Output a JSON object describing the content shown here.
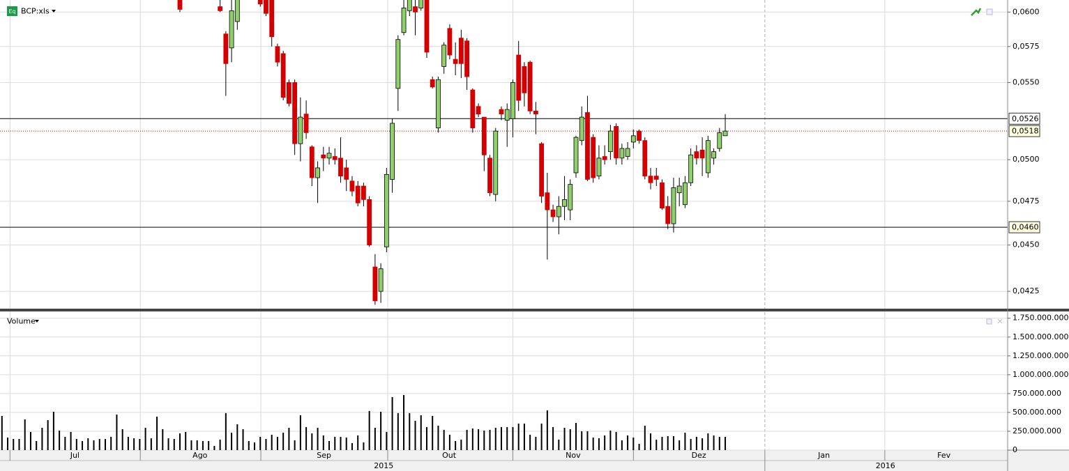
{
  "x_axis": {
    "xlim": [
      -0.34,
      174.95
    ],
    "xticks": [
      {
        "value": 12.7,
        "label": "Jul"
      },
      {
        "value": 34.5,
        "label": "Ago"
      },
      {
        "value": 56.1,
        "label": "Sep"
      },
      {
        "value": 77.9,
        "label": "Out"
      },
      {
        "value": 99.5,
        "label": "Nov"
      },
      {
        "value": 121.4,
        "label": "Dez"
      },
      {
        "value": 143.2,
        "label": "Jan"
      },
      {
        "value": 164.1,
        "label": "Fev"
      }
    ],
    "year_ticks": [
      {
        "value": 66.5,
        "label": "2015"
      },
      {
        "value": 153.9,
        "label": "2016"
      }
    ],
    "xgrid": [
      1.4,
      24.1,
      45.1,
      67.2,
      89.0,
      110.0,
      153.8
    ],
    "dashed_x": 132.9
  },
  "chart_data": [
    {
      "type": "candlestick",
      "title": "BCP:xls",
      "badge": "Eq",
      "log_scale": true,
      "grid": true,
      "up_color": "#8fd06b",
      "down_color": "#d40000",
      "ylim": [
        0.0416,
        0.0609
      ],
      "yticks": [
        {
          "value": 0.0425,
          "label": "0,0425"
        },
        {
          "value": 0.045,
          "label": "0,0450"
        },
        {
          "value": 0.0475,
          "label": "0,0475"
        },
        {
          "value": 0.05,
          "label": "0,0500"
        },
        {
          "value": 0.055,
          "label": "0,0550"
        },
        {
          "value": 0.0575,
          "label": "0,0575"
        },
        {
          "value": 0.06,
          "label": "0,0600"
        }
      ],
      "hlines": [
        {
          "value": 0.0526,
          "label": "0,0526",
          "color": "#000000",
          "style": "solid",
          "label_fill": "#ffffff"
        },
        {
          "value": 0.0518,
          "label": "0,0518",
          "color": "#cc0000",
          "style": "dotted",
          "label_fill": "#ffffe0"
        },
        {
          "value": 0.046,
          "label": "0,0460",
          "color": "#000000",
          "style": "solid",
          "label_fill": "#ffffe0"
        }
      ],
      "open": [
        null,
        null,
        null,
        null,
        null,
        null,
        null,
        null,
        null,
        null,
        null,
        null,
        null,
        null,
        null,
        null,
        null,
        null,
        null,
        null,
        null,
        null,
        null,
        null,
        null,
        null,
        null,
        null,
        null,
        null,
        null,
        0.0615,
        null,
        null,
        null,
        null,
        null,
        null,
        0.0604,
        0.0584,
        0.0574,
        0.0593,
        null,
        null,
        null,
        0.0612,
        0.0612,
        0.061,
        0.0575,
        0.057,
        0.055,
        0.055,
        0.051,
        0.0529,
        0.0508,
        0.0489,
        0.0503,
        0.0501,
        0.0502,
        0.0501,
        0.0495,
        0.0487,
        0.0484,
        0.0484,
        0.0476,
        0.0438,
        0.0425,
        0.0449,
        0.0488,
        0.0546,
        0.0585,
        0.0601,
        0.0604,
        0.0603,
        0.0612,
        0.0552,
        0.052,
        0.0561,
        0.0588,
        0.0566,
        0.0581,
        0.0579,
        0.0545,
        0.0534,
        0.0527,
        0.0501,
        0.0479,
        0.0532,
        0.0525,
        0.0526,
        0.0569,
        0.0561,
        0.0564,
        0.0531,
        0.051,
        0.048,
        0.047,
        0.0466,
        0.0472,
        0.047,
        0.0492,
        0.0512,
        0.053,
        0.0514,
        0.049,
        0.0502,
        0.0505,
        0.0521,
        0.0501,
        0.0502,
        0.0511,
        0.0518,
        0.0512,
        0.049,
        0.049,
        0.0486,
        0.0472,
        0.0462,
        0.048,
        0.0473,
        0.0486,
        0.0505,
        0.0506,
        0.0492,
        0.0501,
        0.0507,
        0.0515
      ],
      "high": [
        null,
        null,
        null,
        null,
        null,
        null,
        null,
        null,
        null,
        null,
        null,
        null,
        null,
        null,
        null,
        null,
        null,
        null,
        null,
        null,
        null,
        null,
        null,
        null,
        null,
        null,
        null,
        null,
        null,
        null,
        null,
        0.0622,
        null,
        null,
        null,
        null,
        null,
        null,
        0.0609,
        0.0586,
        0.0612,
        0.0618,
        null,
        null,
        null,
        0.0616,
        0.0615,
        0.0613,
        0.0577,
        0.0572,
        0.0552,
        0.0552,
        0.054,
        0.0538,
        0.0509,
        0.0499,
        0.0508,
        0.0508,
        0.0507,
        0.0514,
        0.05,
        0.049,
        0.0487,
        0.0486,
        0.0478,
        0.0445,
        0.044,
        0.0495,
        0.0526,
        0.0583,
        0.061,
        0.0616,
        0.061,
        0.0616,
        0.0616,
        0.0554,
        0.0554,
        0.0578,
        0.0591,
        0.0578,
        0.0587,
        0.0581,
        0.0546,
        0.0536,
        0.0527,
        0.0503,
        0.052,
        0.0534,
        0.0536,
        0.0552,
        0.0579,
        0.0564,
        0.0565,
        0.0537,
        0.0511,
        0.0492,
        0.0473,
        0.0478,
        0.049,
        0.0488,
        0.0515,
        0.0534,
        0.0541,
        0.0516,
        0.0509,
        0.0509,
        0.0522,
        0.0523,
        0.051,
        0.0511,
        0.0519,
        0.0519,
        0.0514,
        0.0495,
        0.0495,
        0.0488,
        0.0478,
        0.0489,
        0.0489,
        0.049,
        0.0507,
        0.0509,
        0.0514,
        0.0515,
        0.0507,
        0.052,
        0.0529
      ],
      "low": [
        null,
        null,
        null,
        null,
        null,
        null,
        null,
        null,
        null,
        null,
        null,
        null,
        null,
        null,
        null,
        null,
        null,
        null,
        null,
        null,
        null,
        null,
        null,
        null,
        null,
        null,
        null,
        null,
        null,
        null,
        null,
        0.06,
        null,
        null,
        null,
        null,
        null,
        null,
        0.06,
        0.0541,
        0.0564,
        0.0587,
        null,
        null,
        null,
        0.0604,
        0.0597,
        0.0575,
        0.0561,
        0.0538,
        0.0534,
        0.0503,
        0.0499,
        0.0513,
        0.0484,
        0.0474,
        0.0493,
        0.0497,
        0.0497,
        0.0486,
        0.0481,
        0.0478,
        0.0472,
        0.0472,
        0.0449,
        0.0418,
        0.0419,
        0.0446,
        0.048,
        0.0531,
        0.0583,
        0.0597,
        0.0583,
        0.0601,
        0.0567,
        0.0546,
        0.0517,
        0.0556,
        0.0566,
        0.0555,
        0.0553,
        0.0545,
        0.0517,
        0.0527,
        0.0493,
        0.0478,
        0.0475,
        0.0525,
        0.0508,
        0.0514,
        0.0531,
        0.0534,
        0.0529,
        0.0516,
        0.0474,
        0.0442,
        0.0463,
        0.0456,
        0.0464,
        0.0464,
        0.0489,
        0.0509,
        0.0487,
        0.0486,
        0.0488,
        0.0497,
        0.05,
        0.0497,
        0.0497,
        0.05,
        0.0507,
        0.051,
        0.0488,
        0.0482,
        0.0484,
        0.047,
        0.0459,
        0.0457,
        0.0472,
        0.0471,
        0.0484,
        0.0497,
        0.049,
        0.0489,
        0.0497,
        0.0505,
        0.0515
      ],
      "close": [
        null,
        null,
        null,
        null,
        null,
        null,
        null,
        null,
        null,
        null,
        null,
        null,
        null,
        null,
        null,
        null,
        null,
        null,
        null,
        null,
        null,
        null,
        null,
        null,
        null,
        null,
        null,
        null,
        null,
        null,
        null,
        0.0602,
        null,
        null,
        null,
        null,
        null,
        null,
        0.0601,
        0.0563,
        0.0601,
        0.0612,
        null,
        null,
        null,
        0.0606,
        0.0599,
        0.0582,
        0.0564,
        0.054,
        0.0536,
        0.051,
        0.0527,
        0.0517,
        0.0489,
        0.0495,
        0.0501,
        0.0504,
        0.05,
        0.049,
        0.0488,
        0.0481,
        0.0474,
        0.0476,
        0.045,
        0.042,
        0.0437,
        0.0491,
        0.0523,
        0.058,
        0.0603,
        0.0612,
        0.06,
        0.0612,
        0.0571,
        0.0547,
        0.0552,
        0.0576,
        0.0569,
        0.0563,
        0.0563,
        0.0554,
        0.052,
        0.0529,
        0.0503,
        0.048,
        0.0518,
        0.0529,
        0.0532,
        0.055,
        0.0538,
        0.0543,
        0.0531,
        0.0529,
        0.0478,
        0.047,
        0.0466,
        0.0472,
        0.0476,
        0.0485,
        0.0514,
        0.0527,
        0.0488,
        0.0489,
        0.0501,
        0.05,
        0.0518,
        0.0501,
        0.0507,
        0.0507,
        0.0515,
        0.0512,
        0.049,
        0.0486,
        0.0488,
        0.0471,
        0.0462,
        0.0483,
        0.0484,
        0.0486,
        0.0503,
        0.0501,
        0.0501,
        0.0512,
        0.0505,
        0.0517,
        0.0518
      ]
    },
    {
      "type": "bar",
      "title": "Volume",
      "color": "#000000",
      "grid": true,
      "ylim": [
        0,
        1840000000
      ],
      "yticks": [
        0,
        {
          "value": 250000000,
          "label": "250.000.000"
        },
        {
          "value": 500000000,
          "label": "500.000.000"
        },
        {
          "value": 750000000,
          "label": "750.000.000"
        },
        {
          "value": 1000000000,
          "label": "1.000.000.000"
        },
        {
          "value": 1250000000,
          "label": "1.250.000.000"
        },
        {
          "value": 1500000000,
          "label": "1.500.000.000"
        },
        {
          "value": 1750000000,
          "label": "1.750.000.000"
        }
      ],
      "values": [
        454000000,
        167000000,
        148000000,
        148000000,
        407000000,
        241000000,
        120000000,
        296000000,
        398000000,
        509000000,
        259000000,
        176000000,
        241000000,
        148000000,
        120000000,
        157000000,
        130000000,
        148000000,
        148000000,
        176000000,
        472000000,
        278000000,
        176000000,
        157000000,
        148000000,
        296000000,
        157000000,
        444000000,
        278000000,
        157000000,
        148000000,
        222000000,
        241000000,
        130000000,
        130000000,
        120000000,
        120000000,
        56000000,
        139000000,
        491000000,
        231000000,
        343000000,
        278000000,
        120000000,
        102000000,
        176000000,
        148000000,
        204000000,
        176000000,
        231000000,
        296000000,
        130000000,
        463000000,
        306000000,
        222000000,
        296000000,
        194000000,
        120000000,
        176000000,
        176000000,
        167000000,
        93000000,
        194000000,
        102000000,
        519000000,
        296000000,
        509000000,
        241000000,
        704000000,
        491000000,
        731000000,
        491000000,
        389000000,
        463000000,
        306000000,
        454000000,
        324000000,
        269000000,
        204000000,
        120000000,
        139000000,
        269000000,
        287000000,
        278000000,
        259000000,
        269000000,
        296000000,
        306000000,
        306000000,
        306000000,
        352000000,
        352000000,
        204000000,
        176000000,
        352000000,
        528000000,
        306000000,
        139000000,
        296000000,
        278000000,
        361000000,
        250000000,
        250000000,
        167000000,
        157000000,
        194000000,
        259000000,
        241000000,
        130000000,
        194000000,
        167000000,
        83000000,
        324000000,
        222000000,
        139000000,
        176000000,
        185000000,
        185000000,
        130000000,
        231000000,
        148000000,
        176000000,
        157000000,
        222000000,
        194000000,
        176000000,
        176000000
      ]
    }
  ]
}
